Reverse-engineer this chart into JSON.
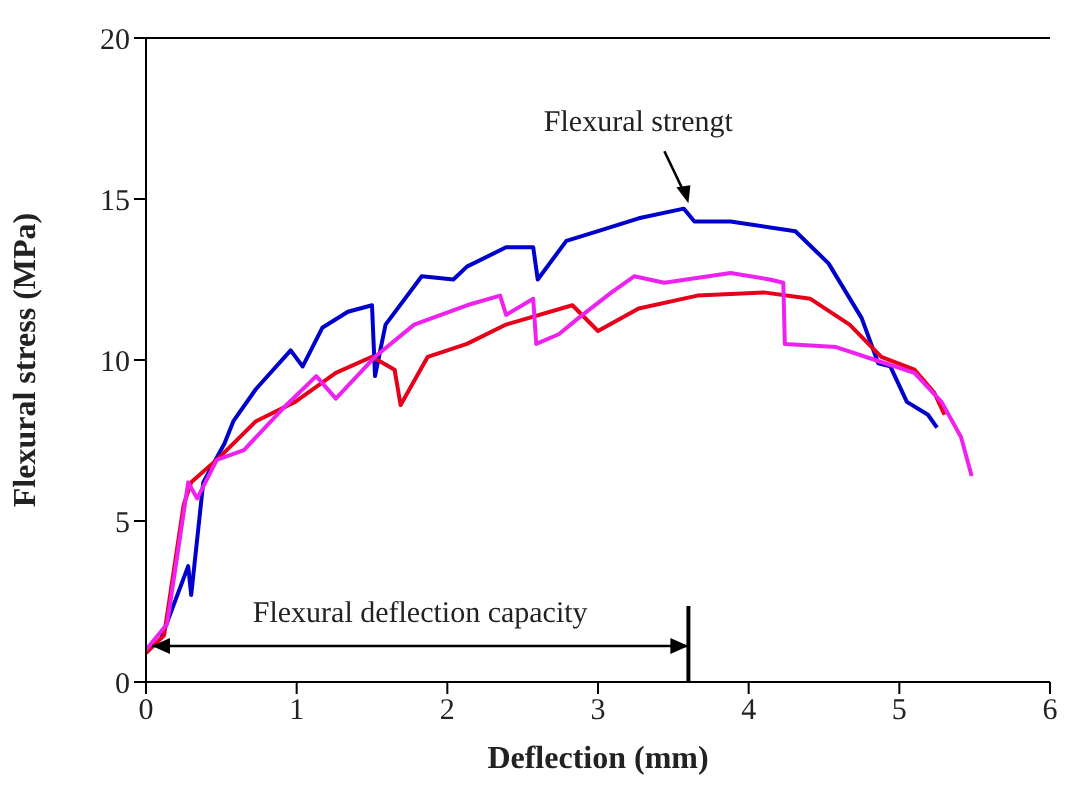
{
  "chart_data": {
    "type": "line",
    "xlabel": "Deflection (mm)",
    "ylabel": "Flexural stress (MPa)",
    "xlim": [
      0,
      6
    ],
    "xticks": [
      0,
      1,
      2,
      3,
      4,
      5,
      6
    ],
    "ylim": [
      0,
      20
    ],
    "yticks": [
      0,
      5,
      10,
      15,
      20
    ],
    "grid": false,
    "legend": false,
    "marker": "none",
    "line_style": "solid",
    "annotations": [
      {
        "text": "Flexural strengt",
        "x": 3.6,
        "y": 14.7
      },
      "Flexural deflection capacity"
    ],
    "series": [
      {
        "color": "#0000cc",
        "x": [
          0.1,
          0.28,
          0.3,
          0.38,
          0.52,
          0.58,
          0.73,
          0.96,
          1.04,
          1.17,
          1.34,
          1.5,
          1.52,
          1.59,
          1.83,
          2.04,
          2.13,
          2.39,
          2.57,
          2.6,
          2.79,
          3.0,
          3.27,
          3.57,
          3.64,
          3.88,
          4.31,
          4.53,
          4.75,
          4.86,
          4.94,
          5.05,
          5.19,
          5.25
        ],
        "values": [
          1.35,
          3.6,
          2.7,
          6.2,
          7.4,
          8.1,
          9.1,
          10.3,
          9.8,
          11.0,
          11.5,
          11.7,
          9.5,
          11.1,
          12.6,
          12.5,
          12.9,
          13.5,
          13.5,
          12.5,
          13.7,
          14.0,
          14.4,
          14.7,
          14.3,
          14.3,
          14.0,
          13.0,
          11.3,
          9.9,
          9.8,
          8.7,
          8.3,
          7.9
        ]
      },
      {
        "color": "#e6001a",
        "x": [
          0,
          0.12,
          0.25,
          0.3,
          0.47,
          0.73,
          0.99,
          1.26,
          1.5,
          1.65,
          1.69,
          1.87,
          2.13,
          2.39,
          2.83,
          3.0,
          3.27,
          3.66,
          4.1,
          4.41,
          4.67,
          4.88,
          5.1,
          5.23,
          5.3
        ],
        "values": [
          0.9,
          1.45,
          5.5,
          6.2,
          6.9,
          8.1,
          8.7,
          9.6,
          10.1,
          9.7,
          8.6,
          10.1,
          10.5,
          11.1,
          11.7,
          10.9,
          11.6,
          12.0,
          12.1,
          11.9,
          11.1,
          10.1,
          9.7,
          9.0,
          8.3
        ]
      },
      {
        "color": "#ee22ee",
        "x": [
          0,
          0.14,
          0.28,
          0.34,
          0.47,
          0.65,
          0.91,
          1.13,
          1.26,
          1.52,
          1.78,
          2.13,
          2.35,
          2.39,
          2.57,
          2.59,
          2.74,
          2.87,
          3.09,
          3.24,
          3.44,
          3.88,
          4.14,
          4.23,
          4.24,
          4.58,
          4.84,
          5.1,
          5.28,
          5.41,
          5.48
        ],
        "values": [
          1.0,
          1.8,
          6.2,
          5.7,
          6.9,
          7.2,
          8.5,
          9.5,
          8.8,
          10.1,
          11.1,
          11.7,
          12.0,
          11.4,
          11.9,
          10.5,
          10.8,
          11.3,
          12.1,
          12.6,
          12.4,
          12.7,
          12.5,
          12.4,
          10.5,
          10.4,
          10.0,
          9.6,
          8.7,
          7.6,
          6.4
        ]
      }
    ]
  }
}
